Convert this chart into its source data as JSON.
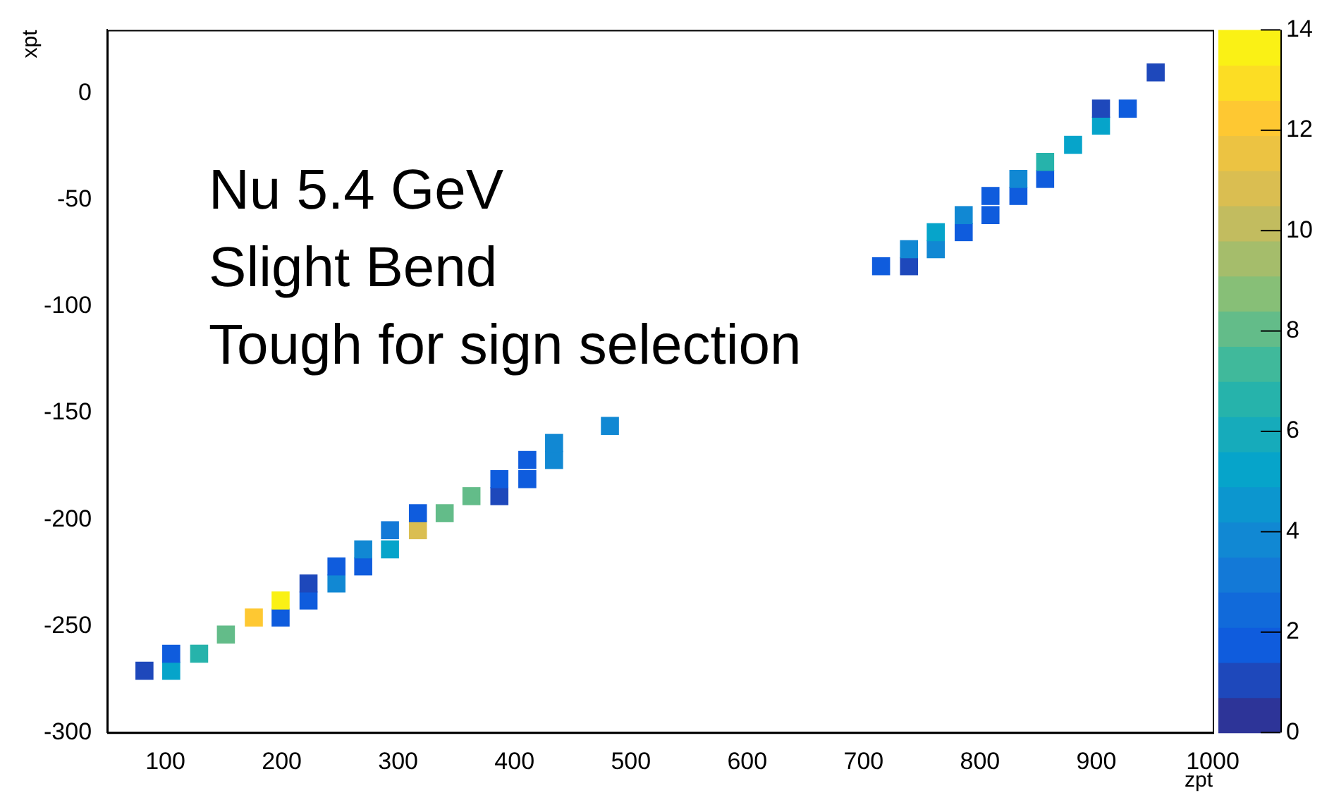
{
  "chart_data": {
    "type": "scatter",
    "xlabel": "zpt",
    "ylabel": "xpt",
    "annotations": [
      "Nu 5.4 GeV",
      "Slight Bend",
      "Tough for sign selection"
    ],
    "x": [
      82,
      105,
      105,
      129,
      152,
      176,
      199,
      199,
      223,
      223,
      247,
      247,
      270,
      270,
      293,
      293,
      317,
      317,
      340,
      363,
      387,
      387,
      411,
      411,
      434,
      434,
      482,
      715,
      739,
      739,
      762,
      762,
      786,
      786,
      809,
      809,
      833,
      833,
      856,
      856,
      880,
      904,
      904,
      927,
      951
    ],
    "values": [
      -271,
      -271,
      -263,
      -263,
      -254,
      -246,
      -246,
      -238,
      -238,
      -230,
      -230,
      -222,
      -222,
      -214,
      -214,
      -205,
      -205,
      -197,
      -197,
      -189,
      -189,
      -181,
      -181,
      -172,
      -172,
      -164,
      -156,
      -81,
      -81,
      -73,
      -73,
      -65,
      -65,
      -57,
      -57,
      -48,
      -48,
      -40,
      -40,
      -32,
      -24,
      -15,
      -7,
      -7,
      10
    ],
    "cvalues": [
      1,
      5,
      2,
      6.5,
      8,
      12.5,
      2,
      14,
      2,
      1,
      3.5,
      2,
      2,
      3.5,
      5.5,
      3,
      11,
      2,
      8,
      8,
      1,
      2,
      1.5,
      2,
      3.5,
      3.5,
      3.5,
      2,
      1,
      3.5,
      3.5,
      5.5,
      2,
      3.5,
      2,
      2,
      2,
      3.5,
      2,
      6.5,
      5.5,
      5.5,
      1,
      2,
      1
    ],
    "marker": "square",
    "xlim": [
      50,
      1000
    ],
    "xticks": [
      100,
      200,
      300,
      400,
      500,
      600,
      700,
      800,
      900,
      1000
    ],
    "ylim": [
      -300,
      30
    ],
    "yticks": [
      -300,
      -250,
      -200,
      -150,
      -100,
      -50,
      0
    ],
    "clim": [
      0,
      14
    ],
    "cticks": [
      0,
      2,
      4,
      6,
      8,
      10,
      12,
      14
    ],
    "grid": false,
    "legend": false
  }
}
